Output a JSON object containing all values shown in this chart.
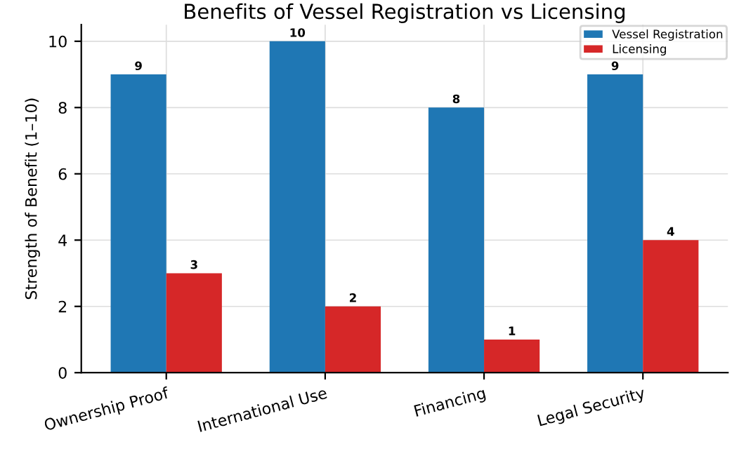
{
  "chart_data": {
    "type": "bar",
    "title": "Benefits of Vessel Registration vs Licensing",
    "ylabel": "Strength of Benefit (1–10)",
    "categories": [
      "Ownership Proof",
      "International Use",
      "Financing",
      "Legal Security"
    ],
    "series": [
      {
        "name": "Vessel Registration",
        "color": "#1f77b4",
        "values": [
          9,
          10,
          8,
          9
        ]
      },
      {
        "name": "Licensing",
        "color": "#d62728",
        "values": [
          3,
          2,
          1,
          4
        ]
      }
    ],
    "ylim": [
      0,
      10.5
    ],
    "yticks": [
      0,
      2,
      4,
      6,
      8,
      10
    ],
    "grid": true,
    "legend": "top right",
    "data_labels": true
  }
}
